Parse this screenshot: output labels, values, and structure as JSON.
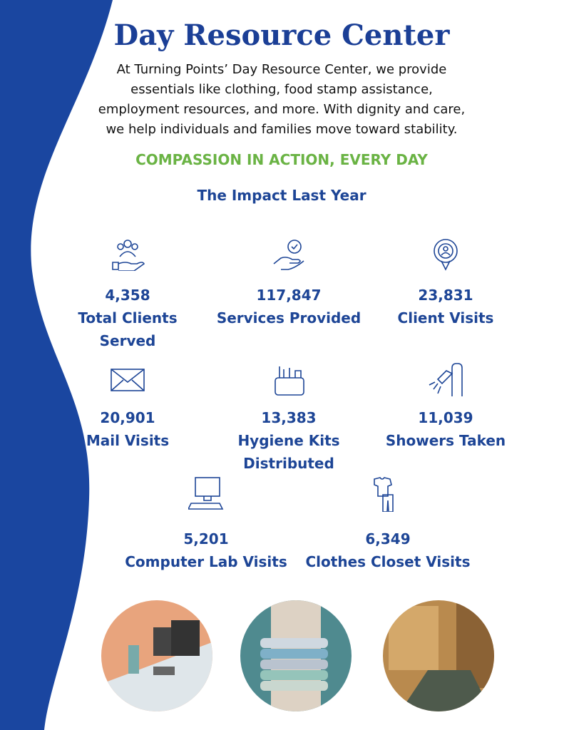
{
  "header": {
    "title": "Day Resource Center",
    "description": "At Turning Points’ Day Resource Center, we provide essentials like clothing, food stamp assistance, employment resources, and more. With dignity and care, we help individuals and families move toward stability.",
    "tagline": "COMPASSION IN ACTION, EVERY DAY",
    "subtitle": "The Impact Last Year"
  },
  "stats": [
    {
      "value": "4,358",
      "label": "Total Clients Served"
    },
    {
      "value": "117,847",
      "label": "Services Provided"
    },
    {
      "value": "23,831",
      "label": "Client Visits"
    },
    {
      "value": "20,901",
      "label": "Mail Visits"
    },
    {
      "value": "13,383",
      "label": "Hygiene Kits Distributed"
    },
    {
      "value": "11,039",
      "label": "Showers Taken"
    },
    {
      "value": "5,201",
      "label": "Computer Lab Visits"
    },
    {
      "value": "6,349",
      "label": "Clothes Closet Visits"
    }
  ]
}
